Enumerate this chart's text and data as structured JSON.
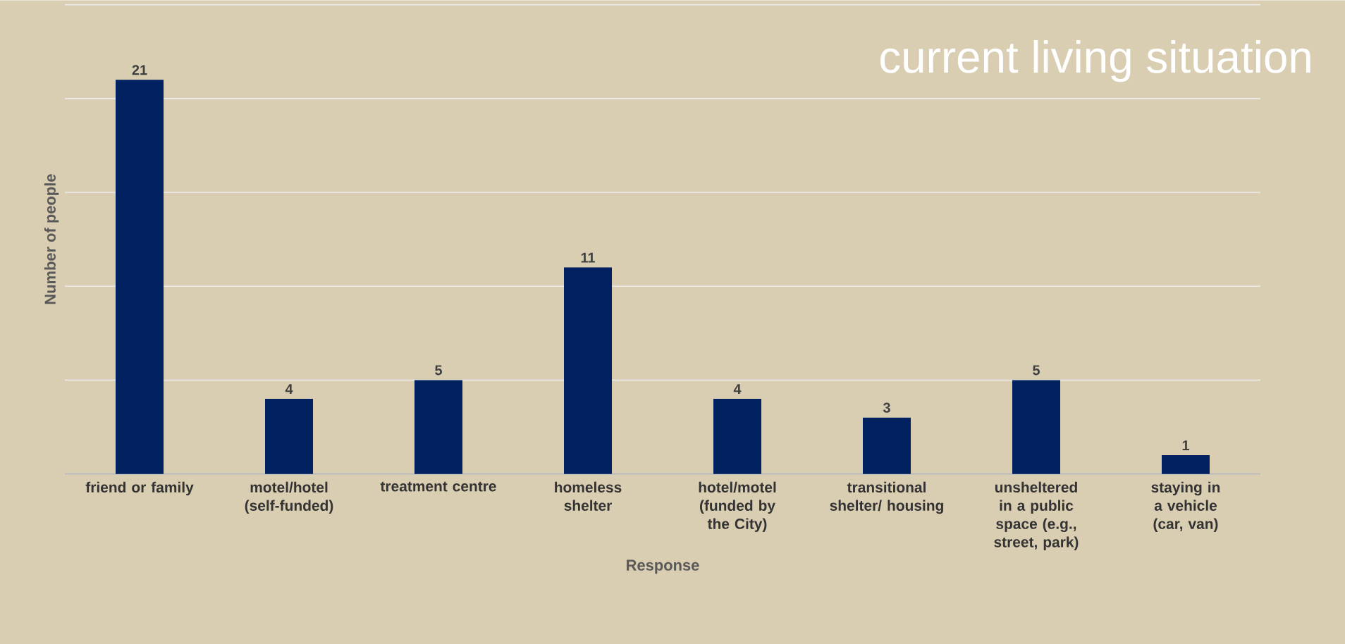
{
  "chart_data": {
    "type": "bar",
    "title": "current living situation",
    "xlabel": "Response",
    "ylabel": "Number of people",
    "categories": [
      "friend or family",
      "motel/hotel (self-funded)",
      "treatment centre",
      "homeless shelter",
      "hotel/motel (funded by the City)",
      "transitional shelter/ housing",
      "unsheltered in a public space (e.g., street, park)",
      "staying in a vehicle (car, van)"
    ],
    "values": [
      21,
      4,
      5,
      11,
      4,
      3,
      5,
      1
    ],
    "color": "#002060",
    "ylim": [
      0,
      25
    ],
    "yticks": [
      {
        "value": 0,
        "label": null
      },
      {
        "value": 5,
        "label": null
      },
      {
        "value": 10,
        "label": null
      },
      {
        "value": 15,
        "label": null
      },
      {
        "value": 20,
        "label": null
      },
      {
        "value": 25,
        "label": null
      }
    ],
    "grid": "y",
    "tick_labels": "x",
    "data_labels": true
  }
}
